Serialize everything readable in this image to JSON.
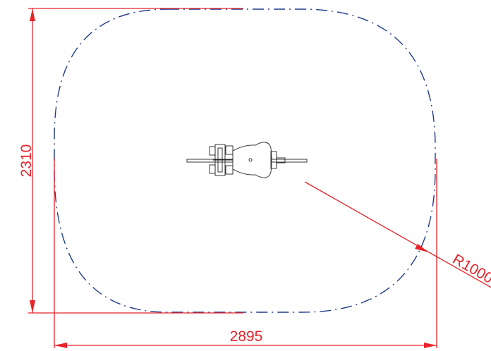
{
  "diagram": {
    "colors": {
      "dimension": "#e8232a",
      "safety_zone": "#1f3a8a",
      "equipment": "#222222",
      "background": "#ffffff"
    },
    "dimensions": {
      "width_label": "2895",
      "height_label": "2310",
      "radius_label": "R1000"
    },
    "safety_zone_line": "dash-dot"
  }
}
